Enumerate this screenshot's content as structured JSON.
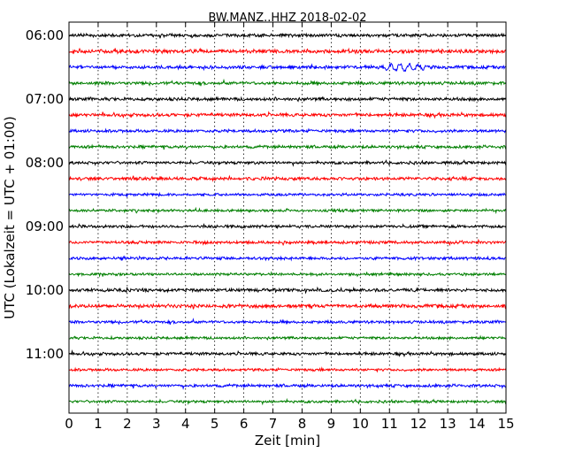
{
  "chart_data": {
    "type": "line",
    "title": "BW.MANZ..HHZ 2018-02-02",
    "xlabel": "Zeit  [min]",
    "ylabel": "UTC (Lokalzeit = UTC + 01:00)",
    "xlim": [
      0,
      15
    ],
    "x_ticks": [
      0,
      1,
      2,
      3,
      4,
      5,
      6,
      7,
      8,
      9,
      10,
      11,
      12,
      13,
      14,
      15
    ],
    "x_tick_labels": [
      "0",
      "1",
      "2",
      "3",
      "4",
      "5",
      "6",
      "7",
      "8",
      "9",
      "10",
      "11",
      "12",
      "13",
      "14",
      "15"
    ],
    "y_tick_labels": [
      "06:00",
      "07:00",
      "08:00",
      "09:00",
      "10:00",
      "11:00"
    ],
    "grid": "vertical-dotted",
    "trace_colors": [
      "#000000",
      "#ff0000",
      "#0000ff",
      "#007f00"
    ],
    "traces": [
      {
        "start": "06:00",
        "color": "#000000",
        "amplitude": 1.0
      },
      {
        "start": "06:15",
        "color": "#ff0000",
        "amplitude": 1.1
      },
      {
        "start": "06:30",
        "color": "#0000ff",
        "amplitude": 1.0,
        "event": {
          "x_min": [
            10.5,
            12.5
          ],
          "peak_amplitude": 4.0
        }
      },
      {
        "start": "06:45",
        "color": "#007f00",
        "amplitude": 1.0
      },
      {
        "start": "07:00",
        "color": "#000000",
        "amplitude": 1.0
      },
      {
        "start": "07:15",
        "color": "#ff0000",
        "amplitude": 1.0
      },
      {
        "start": "07:30",
        "color": "#0000ff",
        "amplitude": 0.9
      },
      {
        "start": "07:45",
        "color": "#007f00",
        "amplitude": 0.9
      },
      {
        "start": "08:00",
        "color": "#000000",
        "amplitude": 0.9
      },
      {
        "start": "08:15",
        "color": "#ff0000",
        "amplitude": 1.0
      },
      {
        "start": "08:30",
        "color": "#0000ff",
        "amplitude": 0.8
      },
      {
        "start": "08:45",
        "color": "#007f00",
        "amplitude": 0.8
      },
      {
        "start": "09:00",
        "color": "#000000",
        "amplitude": 0.9
      },
      {
        "start": "09:15",
        "color": "#ff0000",
        "amplitude": 0.9
      },
      {
        "start": "09:30",
        "color": "#0000ff",
        "amplitude": 0.9
      },
      {
        "start": "09:45",
        "color": "#007f00",
        "amplitude": 0.8
      },
      {
        "start": "10:00",
        "color": "#000000",
        "amplitude": 1.0
      },
      {
        "start": "10:15",
        "color": "#ff0000",
        "amplitude": 1.1
      },
      {
        "start": "10:30",
        "color": "#0000ff",
        "amplitude": 0.9
      },
      {
        "start": "10:45",
        "color": "#007f00",
        "amplitude": 0.8
      },
      {
        "start": "11:00",
        "color": "#000000",
        "amplitude": 0.9
      },
      {
        "start": "11:15",
        "color": "#ff0000",
        "amplitude": 0.8
      },
      {
        "start": "11:30",
        "color": "#0000ff",
        "amplitude": 0.9
      },
      {
        "start": "11:45",
        "color": "#007f00",
        "amplitude": 0.8
      }
    ]
  }
}
